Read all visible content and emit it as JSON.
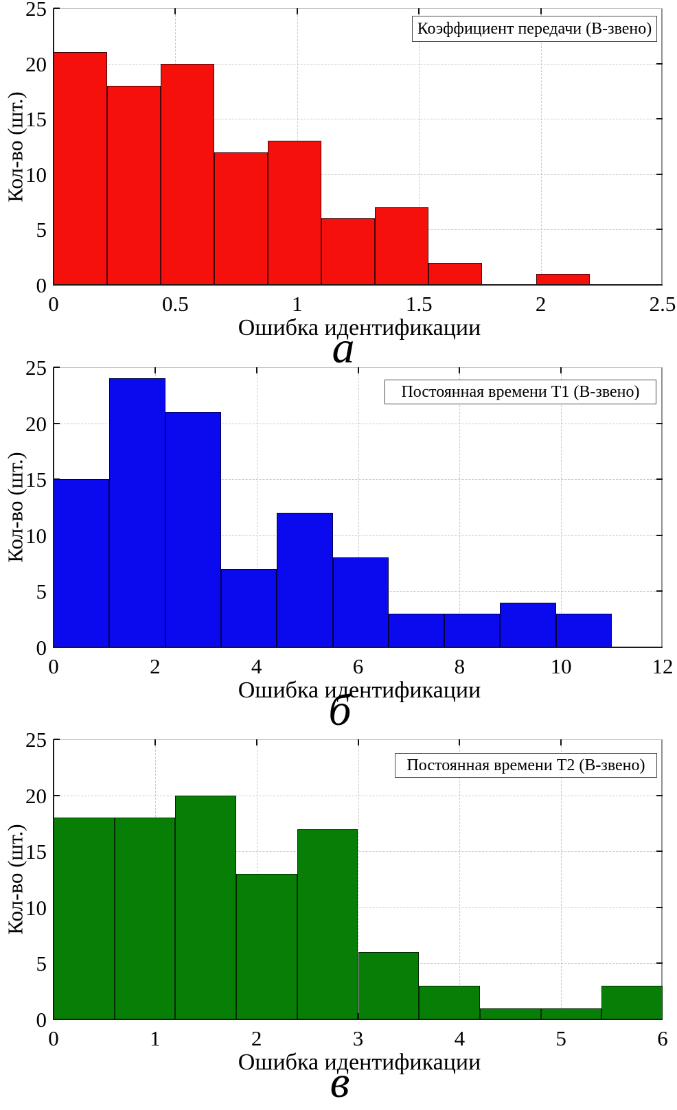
{
  "page": {
    "background_color": "#ffffff",
    "description": "Three stacked histograms of identification errors for B-link model parameters"
  },
  "chart_data": [
    {
      "id": "a",
      "type": "bar",
      "subtype": "histogram",
      "panel_label": "а",
      "legend": "Коэффициент передачи (В-звено)",
      "xlabel": "Ошибка идентификации",
      "ylabel": "Кол-во (шт.)",
      "xlim": [
        0,
        2.5
      ],
      "ylim": [
        0,
        25
      ],
      "xticks": [
        0,
        0.5,
        1,
        1.5,
        2,
        2.5
      ],
      "xtick_labels": [
        "0",
        "0.5",
        "1",
        "1.5",
        "2",
        "2.5"
      ],
      "yticks": [
        0,
        5,
        10,
        15,
        20,
        25
      ],
      "ytick_labels": [
        "0",
        "5",
        "10",
        "15",
        "20",
        "25"
      ],
      "bin_start": 0,
      "bin_width": 0.22,
      "values": [
        21,
        18,
        20,
        12,
        13,
        6,
        7,
        2,
        0,
        1
      ],
      "bar_color": "#f6100b",
      "bar_edge_color": "#470003",
      "grid": true,
      "legend_position": "top-right"
    },
    {
      "id": "b",
      "type": "bar",
      "subtype": "histogram",
      "panel_label": "б",
      "legend": "Постоянная времени Т1 (В-звено)",
      "xlabel": "Ошибка идентификации",
      "ylabel": "Кол-во (шт.)",
      "xlim": [
        0,
        12
      ],
      "ylim": [
        0,
        25
      ],
      "xticks": [
        0,
        2,
        4,
        6,
        8,
        10,
        12
      ],
      "xtick_labels": [
        "0",
        "2",
        "4",
        "6",
        "8",
        "10",
        "12"
      ],
      "yticks": [
        0,
        5,
        10,
        15,
        20,
        25
      ],
      "ytick_labels": [
        "0",
        "5",
        "10",
        "15",
        "20",
        "25"
      ],
      "bin_start": 0,
      "bin_width": 1.1,
      "values": [
        15,
        24,
        21,
        7,
        12,
        8,
        3,
        3,
        4,
        3
      ],
      "bar_color": "#0b09ee",
      "bar_edge_color": "#000042",
      "grid": true,
      "legend_position": "top-right"
    },
    {
      "id": "v",
      "type": "bar",
      "subtype": "histogram",
      "panel_label": "в",
      "legend": "Постоянная времени Т2 (В-звено)",
      "xlabel": "Ошибка идентификации",
      "ylabel": "Кол-во (шт.)",
      "xlim": [
        0,
        6
      ],
      "ylim": [
        0,
        25
      ],
      "xticks": [
        0,
        1,
        2,
        3,
        4,
        5,
        6
      ],
      "xtick_labels": [
        "0",
        "1",
        "2",
        "3",
        "4",
        "5",
        "6"
      ],
      "yticks": [
        0,
        5,
        10,
        15,
        20,
        25
      ],
      "ytick_labels": [
        "0",
        "5",
        "10",
        "15",
        "20",
        "25"
      ],
      "bin_start": 0,
      "bin_width": 0.6,
      "values": [
        18,
        18,
        20,
        13,
        17,
        6,
        3,
        1,
        1,
        3
      ],
      "bar_color": "#077f07",
      "bar_edge_color": "#002a00",
      "grid": true,
      "legend_position": "top-right"
    }
  ]
}
